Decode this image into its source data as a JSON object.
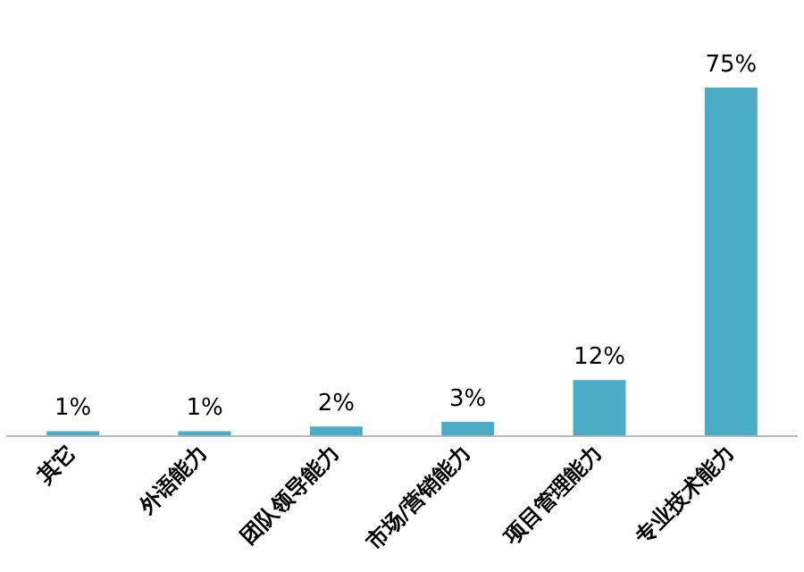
{
  "chart_data": {
    "type": "bar",
    "categories": [
      "其它",
      "外语能力",
      "团队领导能力",
      "市场/营销能力",
      "项目管理能力",
      "专业技术能力"
    ],
    "values": [
      1,
      1,
      2,
      3,
      12,
      75
    ],
    "value_labels": [
      "1%",
      "1%",
      "2%",
      "3%",
      "12%",
      "75%"
    ],
    "color": "#4bacc6",
    "grid": false,
    "legend": false
  }
}
